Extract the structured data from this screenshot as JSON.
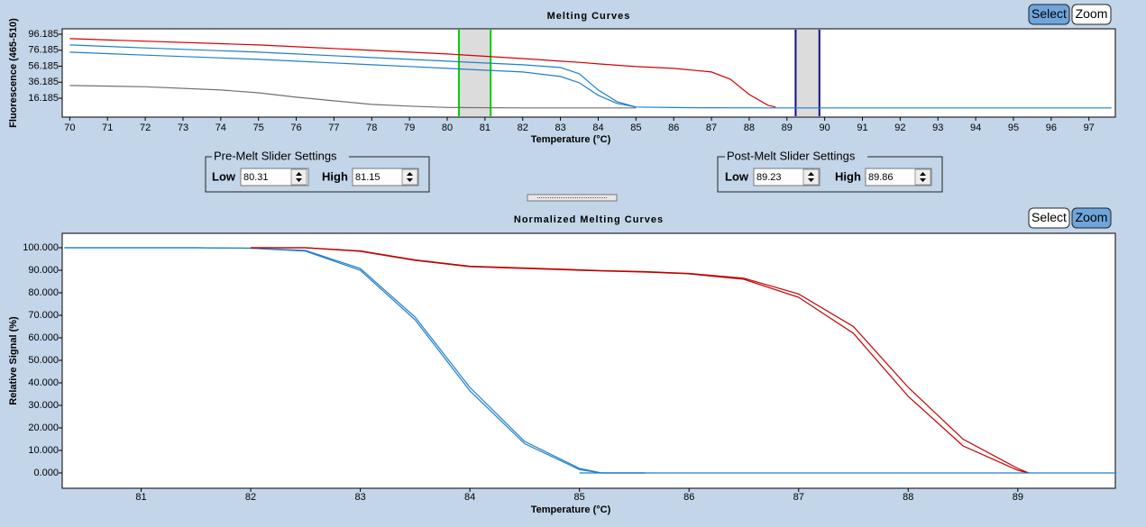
{
  "chart_data": [
    {
      "type": "line",
      "title": "Melting Curves",
      "x_label": "Temperature (°C)",
      "y_label": "Fluorescence (465-510)",
      "xlim": [
        69.8,
        97.7
      ],
      "ylim": [
        -7.4,
        102.9
      ],
      "xticks": [
        70,
        71,
        72,
        73,
        74,
        75,
        76,
        77,
        78,
        79,
        80,
        81,
        82,
        83,
        84,
        85,
        86,
        87,
        88,
        89,
        90,
        91,
        92,
        93,
        94,
        95,
        96,
        97
      ],
      "yticks": [
        16.185,
        36.185,
        56.185,
        76.185,
        96.185
      ],
      "x": [
        70,
        72,
        74,
        75,
        76,
        78,
        79,
        80,
        82,
        83,
        83.5,
        84,
        84.5,
        85,
        86,
        87,
        87.5,
        88,
        88.5,
        88.7,
        90,
        97.6
      ],
      "series": [
        {
          "color": "#d40000",
          "values": [
            90.6,
            87.5,
            84.3,
            82.7,
            80.5,
            76,
            73.8,
            71.5,
            65.8,
            62.5,
            61,
            59.1,
            57.4,
            55.7,
            53.5,
            49,
            40,
            20.9,
            7.4,
            5.2,
            null,
            null
          ]
        },
        {
          "color": "#1f7fc8",
          "values": [
            82.7,
            79,
            75.5,
            73.7,
            71.5,
            67,
            64.8,
            62.5,
            58,
            54.6,
            46.7,
            26.5,
            11.9,
            5.2,
            4.5,
            4.3,
            4.2,
            4.2,
            4.1,
            4.1,
            4.1,
            4.1
          ]
        },
        {
          "color": "#1f7fc8",
          "values": [
            73.7,
            70,
            66.5,
            64.7,
            62.5,
            58,
            55.8,
            53.5,
            49,
            43.4,
            35.5,
            19.8,
            9.7,
            5.2,
            null,
            null,
            null,
            null,
            null,
            null,
            null,
            null
          ]
        },
        {
          "color": "#707070",
          "values": [
            32.1,
            30.5,
            26.5,
            23,
            17.5,
            8.5,
            6.3,
            4.6,
            4.1,
            4.1,
            4.1,
            4.1,
            4.1,
            4.1,
            null,
            null,
            null,
            null,
            null,
            null,
            null,
            null
          ]
        }
      ]
    },
    {
      "type": "line",
      "title": "Normalized Melting Curves",
      "x_label": "Temperature (°C)",
      "y_label": "Relative Signal (%)",
      "xlim": [
        80.28,
        89.89
      ],
      "ylim": [
        -6.8,
        106.4
      ],
      "xticks": [
        81,
        82,
        83,
        84,
        85,
        86,
        87,
        88,
        89
      ],
      "yticks": [
        {
          "value": 0,
          "label": "0.000"
        },
        {
          "value": 10,
          "label": "10.000"
        },
        {
          "value": 20,
          "label": "20.000"
        },
        {
          "value": 30,
          "label": "30.000"
        },
        {
          "value": 40,
          "label": "40.000"
        },
        {
          "value": 50,
          "label": "50.000"
        },
        {
          "value": 60,
          "label": "60.000"
        },
        {
          "value": 70,
          "label": "70.000"
        },
        {
          "value": 80,
          "label": "80.000"
        },
        {
          "value": 90,
          "label": "90.000"
        },
        {
          "value": 100,
          "label": "100.000"
        }
      ],
      "x": [
        80.3,
        81,
        81.5,
        82,
        82.5,
        83,
        83.5,
        84,
        84.5,
        85,
        85.2,
        85.6,
        86,
        86.5,
        87,
        87.5,
        88,
        88.5,
        89,
        89.1,
        89.9
      ],
      "series": [
        {
          "color": "#1f7fc8",
          "values": [
            100,
            100,
            100,
            99.8,
            98.8,
            90.8,
            69.2,
            38,
            14,
            2,
            0,
            0,
            null,
            null,
            null,
            null,
            null,
            null,
            null,
            null,
            null
          ]
        },
        {
          "color": "#1f7fc8",
          "values": [
            100,
            100,
            100,
            99.8,
            98.5,
            90,
            68,
            36.5,
            13,
            1.5,
            0,
            0,
            null,
            null,
            null,
            null,
            null,
            null,
            null,
            null,
            null
          ]
        },
        {
          "color": "#c00000",
          "values": [
            null,
            null,
            null,
            100,
            100,
            98.4,
            94.4,
            91.6,
            90.8,
            90,
            89.7,
            89.2,
            88.4,
            86,
            78,
            62,
            34,
            12,
            1.2,
            0,
            null
          ]
        },
        {
          "color": "#c00000",
          "values": [
            null,
            null,
            null,
            100,
            100,
            98.6,
            94.6,
            91.8,
            91,
            90.2,
            89.9,
            89.4,
            88.6,
            86.5,
            79.5,
            65,
            38,
            15,
            2,
            0,
            null
          ]
        },
        {
          "color": "#1f7fc8",
          "values": [
            null,
            null,
            null,
            null,
            null,
            null,
            null,
            null,
            null,
            0,
            0,
            0,
            0,
            0,
            0,
            0,
            0,
            0,
            0,
            0,
            0
          ]
        }
      ]
    }
  ],
  "melting_toolbar": [
    "Select",
    "Zoom"
  ],
  "normalized_toolbar": [
    "Select",
    "Zoom"
  ],
  "pre_melt": {
    "title": "Pre-Melt Slider Settings",
    "low_label": "Low",
    "low": 80.31,
    "high_label": "High",
    "high": 81.15,
    "color": "#00d000"
  },
  "post_melt": {
    "title": "Post-Melt Slider Settings",
    "low_label": "Low",
    "low": 89.23,
    "high_label": "High",
    "high": 89.86,
    "color": "#101080"
  }
}
